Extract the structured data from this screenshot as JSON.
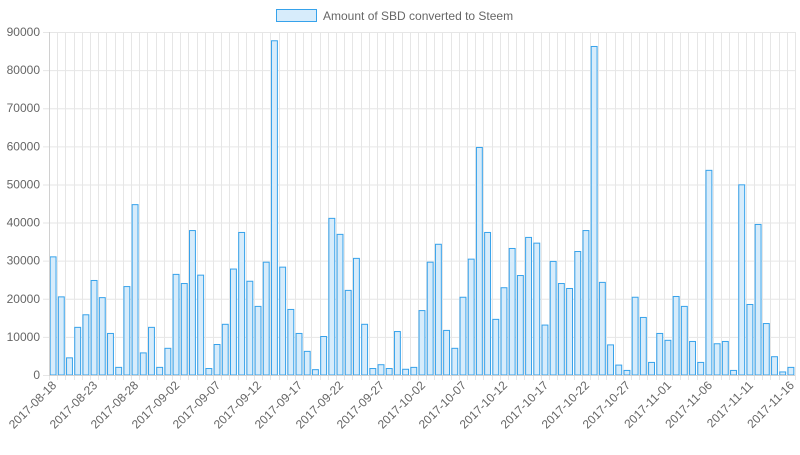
{
  "chart_data": {
    "type": "bar",
    "title": "",
    "xlabel": "",
    "ylabel": "",
    "ylim": [
      0,
      90000
    ],
    "y_ticks": [
      "0",
      "10000",
      "20000",
      "30000",
      "40000",
      "50000",
      "60000",
      "70000",
      "80000",
      "90000"
    ],
    "grid": true,
    "legend_position": "top-center",
    "colors": {
      "bar_fill": "#d7ecfb",
      "bar_stroke": "#36a2eb",
      "grid": "#e6e6e6",
      "text": "#666666"
    },
    "x_tick_labels": [
      "2017-08-18",
      "2017-08-23",
      "2017-08-28",
      "2017-09-02",
      "2017-09-07",
      "2017-09-12",
      "2017-09-17",
      "2017-09-22",
      "2017-09-27",
      "2017-10-02",
      "2017-10-07",
      "2017-10-12",
      "2017-10-17",
      "2017-10-22",
      "2017-10-27",
      "2017-11-01",
      "2017-11-06",
      "2017-11-11",
      "2017-11-16"
    ],
    "series": [
      {
        "name": "Amount of SBD converted to Steem",
        "start_date": "2017-08-18",
        "values": [
          31000,
          20500,
          4500,
          12500,
          15800,
          24800,
          20300,
          10900,
          2000,
          23200,
          44700,
          5800,
          12500,
          2000,
          7000,
          26400,
          24000,
          37900,
          26200,
          1700,
          8000,
          13300,
          27800,
          37400,
          24600,
          18000,
          29600,
          87700,
          28300,
          17200,
          10900,
          6200,
          1400,
          10100,
          41100,
          36900,
          22200,
          30600,
          13300,
          1700,
          2700,
          1700,
          11400,
          1500,
          2000,
          16900,
          29600,
          34300,
          11700,
          7000,
          20400,
          30400,
          59700,
          37400,
          14600,
          22900,
          33200,
          26100,
          36100,
          34600,
          13100,
          29800,
          24000,
          22700,
          32400,
          37900,
          86200,
          24300,
          7900,
          2600,
          1200,
          20400,
          15100,
          3300,
          10900,
          9100,
          20600,
          18000,
          8800,
          3300,
          53700,
          8200,
          8800,
          1200,
          49900,
          18500,
          39500,
          13500,
          4800,
          800,
          2000
        ]
      }
    ]
  }
}
